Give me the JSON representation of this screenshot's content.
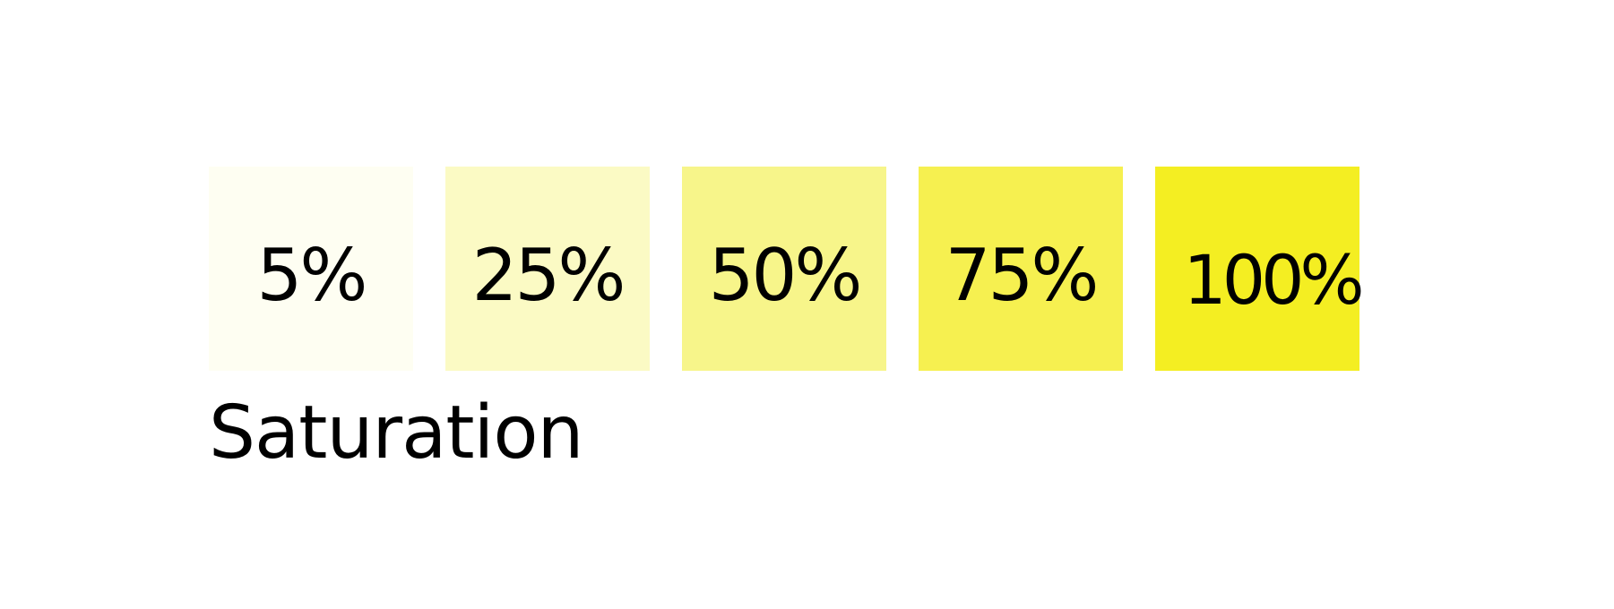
{
  "swatches": [
    {
      "label": "5%",
      "color": "#fefef2"
    },
    {
      "label": "25%",
      "color": "#fbfac4"
    },
    {
      "label": "50%",
      "color": "#f7f58a"
    },
    {
      "label": "75%",
      "color": "#f6f050"
    },
    {
      "label": "100%",
      "color": "#f4ee22"
    }
  ],
  "caption": "Saturation"
}
